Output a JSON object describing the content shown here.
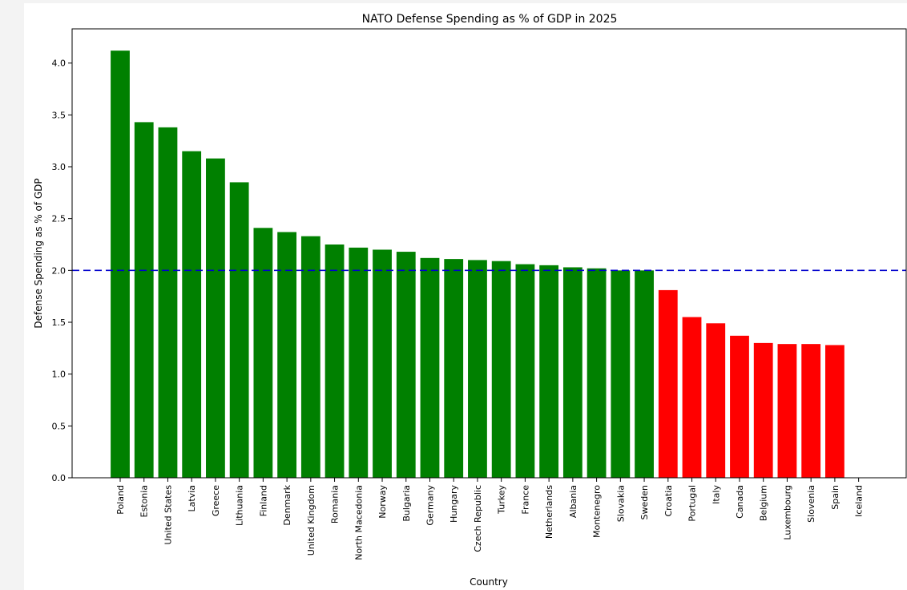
{
  "chart_data": {
    "type": "bar",
    "title": "NATO Defense Spending as % of GDP in 2025",
    "xlabel": "Country",
    "ylabel": "Defense Spending as % of GDP",
    "ylim": [
      0,
      4.33
    ],
    "yticks": [
      "0.0",
      "0.5",
      "1.0",
      "1.5",
      "2.0",
      "2.5",
      "3.0",
      "3.5",
      "4.0"
    ],
    "threshold": 2.0,
    "grid": false,
    "colors": {
      "above": "#008000",
      "below": "#ff0000",
      "threshold": "#0000cc"
    },
    "categories": [
      "Poland",
      "Estonia",
      "United States",
      "Latvia",
      "Greece",
      "Lithuania",
      "Finland",
      "Denmark",
      "United Kingdom",
      "Romania",
      "North Macedonia",
      "Norway",
      "Bulgaria",
      "Germany",
      "Hungary",
      "Czech Republic",
      "Turkey",
      "France",
      "Netherlands",
      "Albania",
      "Montenegro",
      "Slovakia",
      "Sweden",
      "Croatia",
      "Portugal",
      "Italy",
      "Canada",
      "Belgium",
      "Luxembourg",
      "Slovenia",
      "Spain",
      "Iceland"
    ],
    "values": [
      4.12,
      3.43,
      3.38,
      3.15,
      3.08,
      2.85,
      2.41,
      2.37,
      2.33,
      2.25,
      2.22,
      2.2,
      2.18,
      2.12,
      2.11,
      2.1,
      2.09,
      2.06,
      2.05,
      2.03,
      2.02,
      2.0,
      2.0,
      1.81,
      1.55,
      1.49,
      1.37,
      1.3,
      1.29,
      1.29,
      1.28,
      0.0
    ]
  }
}
